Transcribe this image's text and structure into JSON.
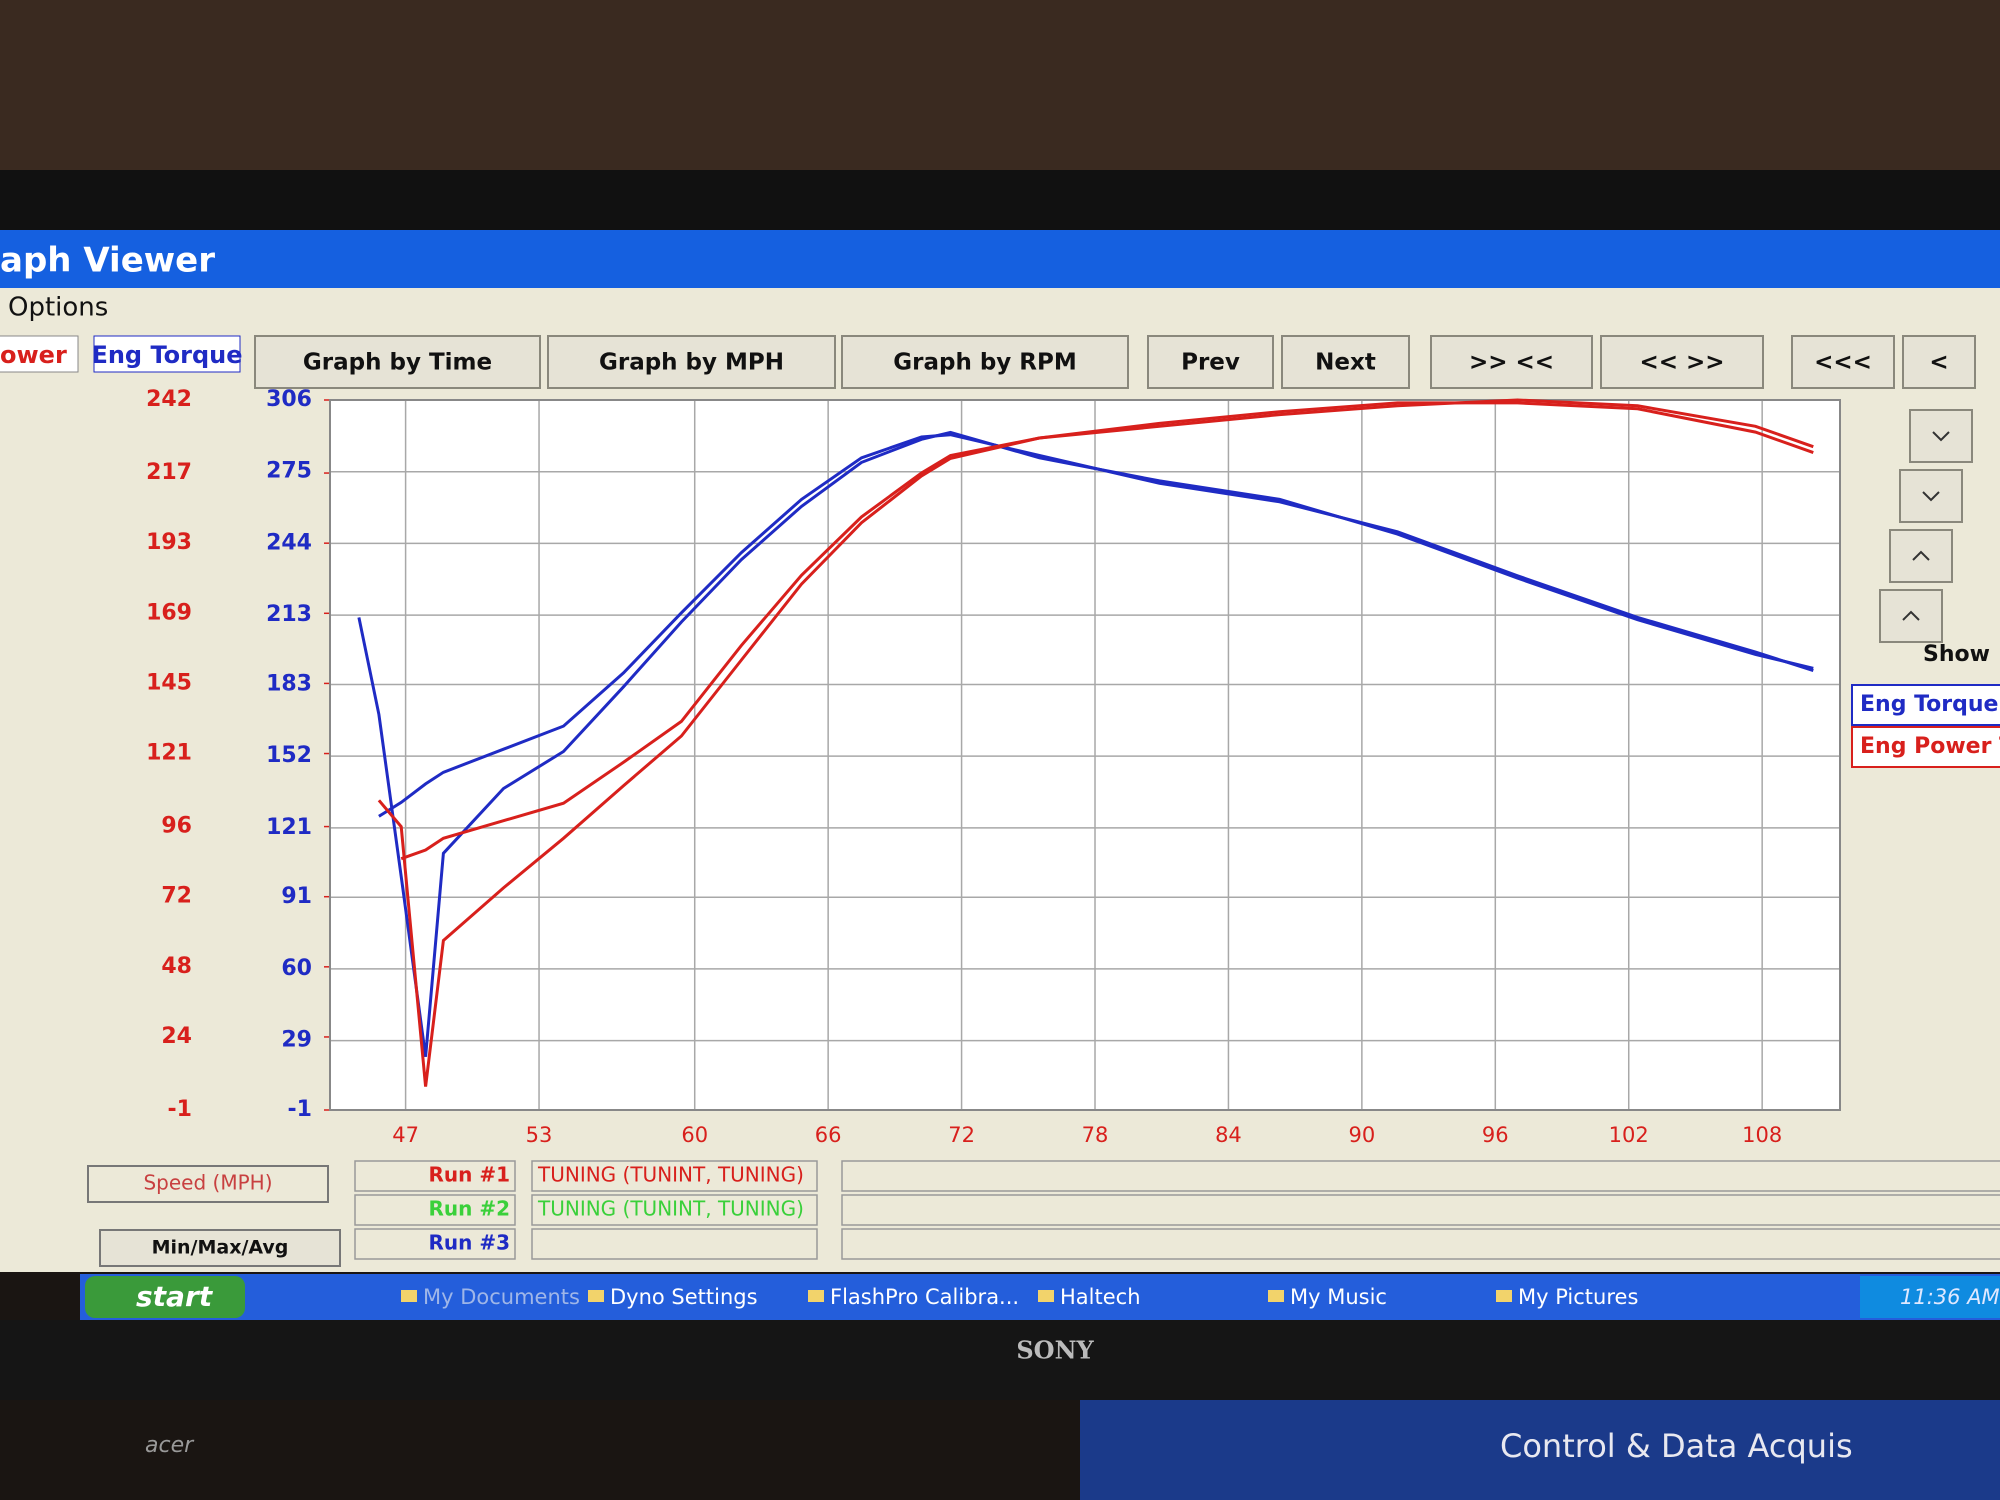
{
  "window": {
    "title": "aph Viewer",
    "menu": [
      "Options"
    ]
  },
  "tabs": [
    "ower",
    "Eng Torque"
  ],
  "buttons": [
    "Graph by Time",
    "Graph by MPH",
    "Graph by RPM",
    "Prev",
    "Next",
    ">> <<",
    "<< >>",
    "<<<",
    "<"
  ],
  "side_panel": {
    "label": "Show"
  },
  "chart_data": {
    "type": "line",
    "x_label": "Speed (MPH)",
    "x": [
      44.9,
      45.8,
      46.8,
      47.9,
      48.7,
      51.4,
      54.1,
      56.8,
      59.4,
      62.1,
      64.8,
      67.5,
      70.2,
      71.5,
      75.5,
      80.9,
      86.3,
      91.6,
      97.0,
      102.4,
      107.7,
      110.3
    ],
    "xlim": [
      43.6,
      111.5
    ],
    "xticks": [
      47,
      53,
      60,
      66,
      72,
      78,
      84,
      90,
      96,
      102,
      108
    ],
    "ylim": [
      -1,
      306
    ],
    "yticks": [
      -1,
      29,
      60,
      91,
      121,
      152,
      183,
      213,
      244,
      275,
      306
    ],
    "y2lim": [
      -1,
      242
    ],
    "y2ticks": [
      -1,
      24,
      48,
      72,
      96,
      121,
      145,
      169,
      193,
      217,
      242
    ],
    "grid": true,
    "series": [
      {
        "name": "Eng Torque",
        "color": "#1f2bc4",
        "values": [
          212,
          170,
          100,
          22,
          110,
          138,
          154,
          182,
          210,
          237,
          260,
          279,
          289,
          292,
          281,
          271,
          263,
          248,
          229,
          211,
          196,
          190
        ]
      },
      {
        "color": "#1f2bc4",
        "values": [
          null,
          126,
          132,
          140,
          145,
          155,
          165,
          188,
          214,
          240,
          263,
          281,
          290,
          291,
          282,
          270,
          262,
          249,
          230,
          212,
          197,
          189
        ]
      },
      {
        "name": "Eng Power T",
        "color": "#d8201c",
        "axis": "y2",
        "values": [
          null,
          105,
          96,
          7,
          57,
          75,
          92,
          110,
          127,
          153,
          179,
          200,
          216,
          222,
          229,
          233,
          237,
          240,
          242,
          240,
          233,
          226
        ]
      },
      {
        "color": "#d8201c",
        "axis": "y2",
        "values": [
          null,
          null,
          85,
          88,
          92,
          98,
          104,
          118,
          132,
          158,
          182,
          202,
          217,
          223,
          229,
          234,
          238,
          241,
          241,
          239,
          231,
          224
        ]
      }
    ]
  },
  "runs": [
    {
      "label": "Run #1",
      "desc": "TUNING (TUNINT, TUNING)",
      "color": "#d8201c"
    },
    {
      "label": "Run #2",
      "desc": "TUNING (TUNINT, TUNING)",
      "color": "#3ad03a"
    },
    {
      "label": "Run #3",
      "color": "#1f2bc4"
    }
  ],
  "stats_button": "Min/Max/Avg",
  "taskbar": {
    "start": "start",
    "items": [
      "My Documents",
      "Dyno Settings",
      "FlashPro Calibra...",
      "Haltech",
      "My Music",
      "My Pictures"
    ],
    "clock": "11:36 AM"
  },
  "monitor_brand": "SONY",
  "background_texts": [
    "acer",
    "Control & Data Acquis"
  ]
}
